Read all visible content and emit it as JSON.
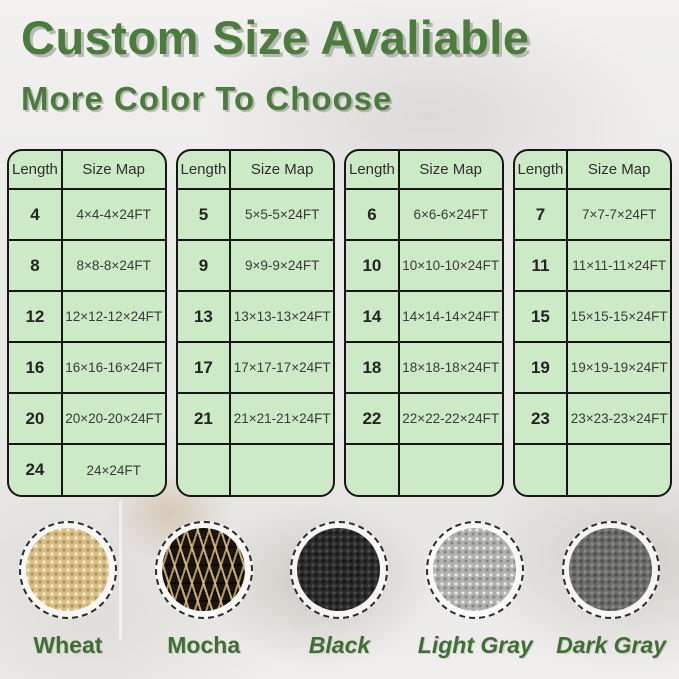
{
  "title": "Custom Size Avaliable",
  "subtitle": "More Color To Choose",
  "colors": {
    "heading_green": "#4a7d3c",
    "label_green": "#3e7034",
    "table_fill_green": "#cdeac6",
    "table_border": "#161616",
    "wheat": "#d9be85",
    "mocha_tan": "#dbbd7c",
    "mocha_black": "#1a1510",
    "black": "#2c2c2c",
    "light_gray": "#b1b1af",
    "dark_gray": "#6d6d6b"
  },
  "tables": [
    {
      "headers": [
        "Length",
        "Size Map"
      ],
      "rows": [
        [
          "4",
          "4×4-4×24FT"
        ],
        [
          "8",
          "8×8-8×24FT"
        ],
        [
          "12",
          "12×12-12×24FT"
        ],
        [
          "16",
          "16×16-16×24FT"
        ],
        [
          "20",
          "20×20-20×24FT"
        ],
        [
          "24",
          "24×24FT"
        ]
      ]
    },
    {
      "headers": [
        "Length",
        "Size Map"
      ],
      "rows": [
        [
          "5",
          "5×5-5×24FT"
        ],
        [
          "9",
          "9×9-9×24FT"
        ],
        [
          "13",
          "13×13-13×24FT"
        ],
        [
          "17",
          "17×17-17×24FT"
        ],
        [
          "21",
          "21×21-21×24FT"
        ],
        [
          "",
          ""
        ]
      ]
    },
    {
      "headers": [
        "Length",
        "Size Map"
      ],
      "rows": [
        [
          "6",
          "6×6-6×24FT"
        ],
        [
          "10",
          "10×10-10×24FT"
        ],
        [
          "14",
          "14×14-14×24FT"
        ],
        [
          "18",
          "18×18-18×24FT"
        ],
        [
          "22",
          "22×22-22×24FT"
        ],
        [
          "",
          ""
        ]
      ]
    },
    {
      "headers": [
        "Length",
        "Size Map"
      ],
      "rows": [
        [
          "7",
          "7×7-7×24FT"
        ],
        [
          "11",
          "11×11-11×24FT"
        ],
        [
          "15",
          "15×15-15×24FT"
        ],
        [
          "19",
          "19×19-19×24FT"
        ],
        [
          "23",
          "23×23-23×24FT"
        ],
        [
          "",
          ""
        ]
      ]
    }
  ],
  "swatches": [
    {
      "label": "Wheat"
    },
    {
      "label": "Mocha"
    },
    {
      "label": "Black"
    },
    {
      "label": "Light Gray"
    },
    {
      "label": "Dark Gray"
    }
  ]
}
